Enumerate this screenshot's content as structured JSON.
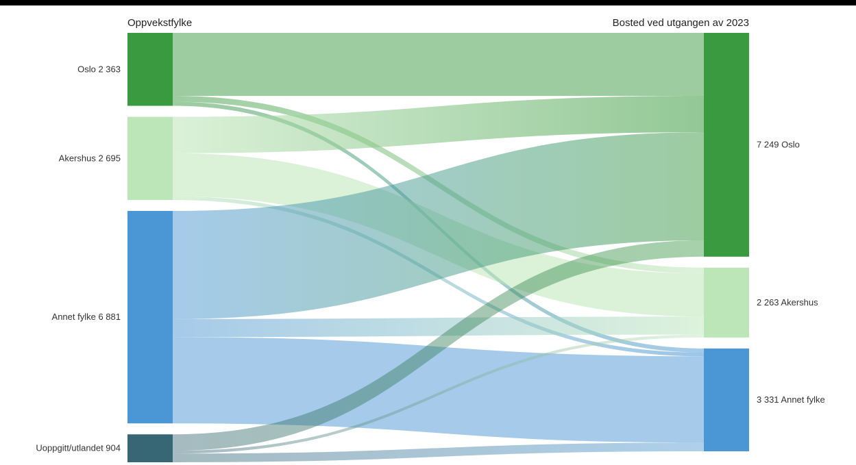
{
  "chart_data": {
    "type": "sankey",
    "source_header": "Oppvekstfylke",
    "target_header": "Bosted ved utgangen av 2023",
    "sources": [
      {
        "name": "Oslo",
        "value": 2363,
        "label": "Oslo 2 363",
        "color": "#3a9a40"
      },
      {
        "name": "Akershus",
        "value": 2695,
        "label": "Akershus 2 695",
        "color": "#bde6b8"
      },
      {
        "name": "Annet fylke",
        "value": 6881,
        "label": "Annet fylke 6 881",
        "color": "#4b96d4"
      },
      {
        "name": "Uoppgitt/utlandet",
        "value": 904,
        "label": "Uoppgitt/utlandet 904",
        "color": "#376775"
      }
    ],
    "targets": [
      {
        "name": "Oslo",
        "value": 7249,
        "label": "7 249 Oslo",
        "color": "#3a9a40"
      },
      {
        "name": "Akershus",
        "value": 2263,
        "label": "2 263 Akershus",
        "color": "#bde6b8"
      },
      {
        "name": "Annet fylke",
        "value": 3331,
        "label": "3 331 Annet fylke",
        "color": "#4b96d4"
      }
    ],
    "flows": [
      {
        "source": "Oslo",
        "target": "Oslo",
        "value": 2040
      },
      {
        "source": "Oslo",
        "target": "Akershus",
        "value": 190
      },
      {
        "source": "Oslo",
        "target": "Annet fylke",
        "value": 133
      },
      {
        "source": "Akershus",
        "target": "Oslo",
        "value": 1180
      },
      {
        "source": "Akershus",
        "target": "Akershus",
        "value": 1395
      },
      {
        "source": "Akershus",
        "target": "Annet fylke",
        "value": 120
      },
      {
        "source": "Annet fylke",
        "target": "Oslo",
        "value": 3500
      },
      {
        "source": "Annet fylke",
        "target": "Akershus",
        "value": 585
      },
      {
        "source": "Annet fylke",
        "target": "Annet fylke",
        "value": 2796
      },
      {
        "source": "Uoppgitt/utlandet",
        "target": "Oslo",
        "value": 529
      },
      {
        "source": "Uoppgitt/utlandet",
        "target": "Akershus",
        "value": 93
      },
      {
        "source": "Uoppgitt/utlandet",
        "target": "Annet fylke",
        "value": 282
      }
    ]
  }
}
